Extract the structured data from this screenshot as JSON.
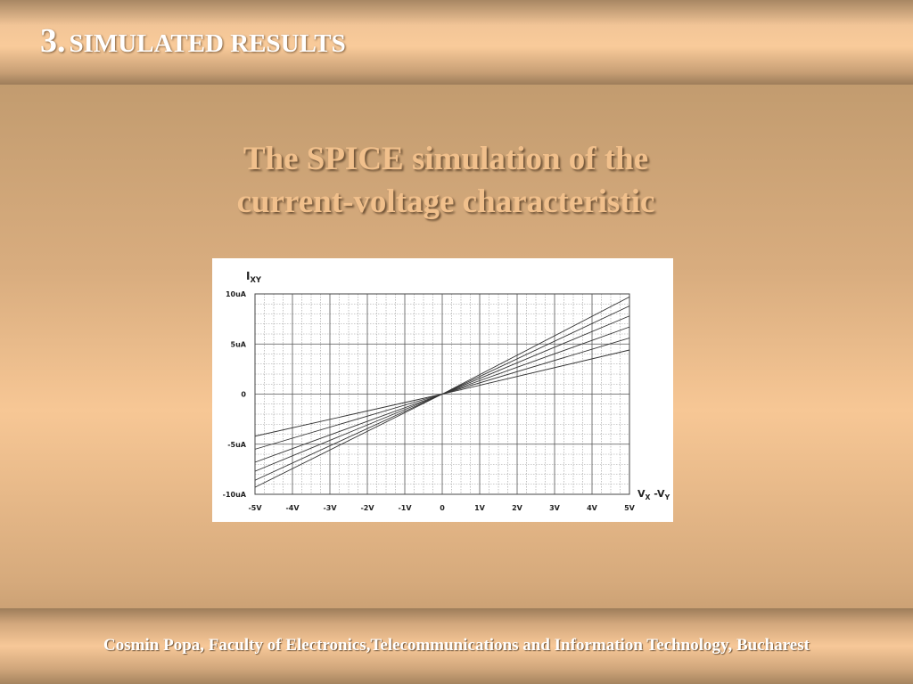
{
  "header": {
    "number": "3.",
    "title": "SIMULATED RESULTS"
  },
  "subtitle": [
    "The SPICE simulation of the",
    "current-voltage characteristic"
  ],
  "footer": "Cosmin Popa, Faculty of Electronics,Telecommunications and Information Technology, Bucharest",
  "chart_data": {
    "type": "line",
    "y_label": [
      {
        "text": "I",
        "sub": false
      },
      {
        "text": "XY",
        "sub": true
      }
    ],
    "x_label": [
      {
        "text": "V",
        "sub": false
      },
      {
        "text": "X",
        "sub": true
      },
      {
        "text": " -V",
        "sub": false
      },
      {
        "text": "Y",
        "sub": true
      }
    ],
    "x": [
      -5,
      0,
      5
    ],
    "xlim": [
      -5,
      5
    ],
    "xticks": [
      {
        "value": -5,
        "label": "-5V"
      },
      {
        "value": -4,
        "label": "-4V"
      },
      {
        "value": -3,
        "label": "-3V"
      },
      {
        "value": -2,
        "label": "-2V"
      },
      {
        "value": -1,
        "label": "-1V"
      },
      0,
      {
        "value": 1,
        "label": "1V"
      },
      {
        "value": 2,
        "label": "2V"
      },
      {
        "value": 3,
        "label": "3V"
      },
      {
        "value": 4,
        "label": "4V"
      },
      {
        "value": 5,
        "label": "5V"
      }
    ],
    "ylim": [
      -10,
      10
    ],
    "yticks": [
      {
        "value": -10,
        "label": "-10uA"
      },
      {
        "value": -5,
        "label": "-5uA"
      },
      0,
      {
        "value": 5,
        "label": "5uA"
      },
      {
        "value": 10,
        "label": "10uA"
      }
    ],
    "grid": true,
    "series": [
      {
        "color": "#333333",
        "values": [
          -9.3,
          0,
          9.7
        ]
      },
      {
        "color": "#333333",
        "values": [
          -8.6,
          0,
          8.8
        ]
      },
      {
        "color": "#333333",
        "values": [
          -7.7,
          0,
          7.8
        ]
      },
      {
        "color": "#333333",
        "values": [
          -6.8,
          0,
          6.7
        ]
      },
      {
        "color": "#333333",
        "values": [
          -5.5,
          0,
          5.6
        ]
      },
      {
        "color": "#333333",
        "values": [
          -4.2,
          0,
          4.4
        ]
      }
    ]
  }
}
